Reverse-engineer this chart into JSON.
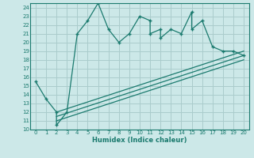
{
  "title": "",
  "xlabel": "Humidex (Indice chaleur)",
  "ylabel": "",
  "bg_color": "#cce8e8",
  "grid_color": "#aacccc",
  "line_color": "#1a7a6e",
  "xlim": [
    -0.5,
    20.5
  ],
  "ylim": [
    10,
    24.5
  ],
  "xticks": [
    0,
    1,
    2,
    3,
    4,
    5,
    6,
    7,
    8,
    9,
    10,
    11,
    12,
    13,
    14,
    15,
    16,
    17,
    18,
    19,
    20
  ],
  "yticks": [
    10,
    11,
    12,
    13,
    14,
    15,
    16,
    17,
    18,
    19,
    20,
    21,
    22,
    23,
    24
  ],
  "main_x": [
    0,
    1,
    2,
    2,
    3,
    4,
    5,
    6,
    7,
    8,
    9,
    10,
    11,
    11,
    12,
    12,
    13,
    14,
    15,
    15,
    16,
    17,
    18,
    19,
    20
  ],
  "main_y": [
    15.5,
    13.5,
    12.0,
    10.5,
    12.0,
    21.0,
    22.5,
    24.5,
    21.5,
    20.0,
    21.0,
    23.0,
    22.5,
    21.0,
    21.5,
    20.5,
    21.5,
    21.0,
    23.5,
    21.5,
    22.5,
    19.5,
    19.0,
    19.0,
    18.5
  ],
  "ref_lines": [
    {
      "x0": 2.0,
      "y0": 12.0,
      "x1": 20.0,
      "y1": 19.0
    },
    {
      "x0": 2.0,
      "y0": 11.5,
      "x1": 20.0,
      "y1": 18.5
    },
    {
      "x0": 2.0,
      "y0": 11.0,
      "x1": 20.0,
      "y1": 18.0
    }
  ]
}
